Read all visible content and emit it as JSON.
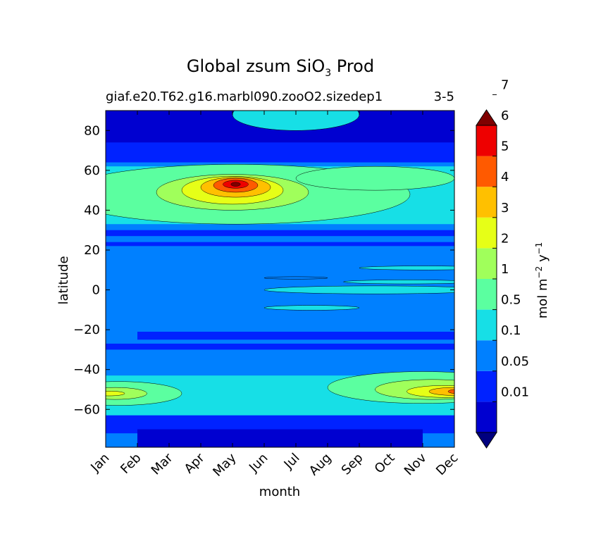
{
  "chart_data": {
    "type": "heatmap",
    "title": "Global zsum SiO",
    "title_subscript": "3",
    "title_suffix": " Prod",
    "subtitle_left": "giaf.e20.T62.g16.marbl090.zooO2.sizedep1",
    "subtitle_right": "3-5",
    "xlabel": "month",
    "ylabel": "latitude",
    "x_ticks": [
      "Jan",
      "Feb",
      "Mar",
      "Apr",
      "May",
      "Jun",
      "Jul",
      "Aug",
      "Sep",
      "Oct",
      "Nov",
      "Dec"
    ],
    "y_ticks": [
      80,
      60,
      40,
      20,
      0,
      -20,
      -40,
      -60
    ],
    "y_tick_labels": [
      "80",
      "60",
      "40",
      "20",
      "0",
      "−20",
      "−40",
      "−60"
    ],
    "ylim": [
      -79,
      90
    ],
    "colorbar": {
      "label": "mol m",
      "label_exp1": "−2",
      "label_mid": " y",
      "label_exp2": "−1",
      "levels": [
        0.01,
        0.05,
        0.1,
        0.5,
        1,
        2,
        3,
        4,
        5,
        6,
        7
      ],
      "level_labels": [
        "0.01",
        "0.05",
        "0.1",
        "0.5",
        "1",
        "2",
        "3",
        "4",
        "5",
        "6",
        "7"
      ],
      "colors": [
        "#00007f",
        "#0000d0",
        "#0022ff",
        "#0080ff",
        "#17dfe6",
        "#5bffa0",
        "#a0ff5b",
        "#e6ff17",
        "#ffc000",
        "#ff5a00",
        "#ee0000",
        "#7f0000"
      ],
      "extend": "both"
    },
    "features": [
      {
        "kind": "ellipse",
        "month": 5.1,
        "lat": 48,
        "half_months": 5.5,
        "half_lat": 15,
        "value": 1.4
      },
      {
        "kind": "ellipse",
        "month": 5.0,
        "lat": 49,
        "half_months": 2.4,
        "half_lat": 9,
        "value": 2.3
      },
      {
        "kind": "ellipse",
        "month": 5.0,
        "lat": 50,
        "half_months": 1.6,
        "half_lat": 7,
        "value": 3.3
      },
      {
        "kind": "ellipse",
        "month": 5.1,
        "lat": 51.5,
        "half_months": 1.1,
        "half_lat": 5,
        "value": 4.4
      },
      {
        "kind": "ellipse",
        "month": 5.1,
        "lat": 52.5,
        "half_months": 0.7,
        "half_lat": 3.5,
        "value": 5.4
      },
      {
        "kind": "ellipse",
        "month": 5.1,
        "lat": 53,
        "half_months": 0.4,
        "half_lat": 2,
        "value": 6.4
      },
      {
        "kind": "ellipse",
        "month": 5.1,
        "lat": 53,
        "half_months": 0.15,
        "half_lat": 1,
        "value": 7.4
      },
      {
        "kind": "ellipse",
        "month": 9.5,
        "lat": 56,
        "half_months": 2.5,
        "half_lat": 6,
        "value": 1.4
      },
      {
        "kind": "ellipse",
        "month": 1.4,
        "lat": -52,
        "half_months": 2.0,
        "half_lat": 6,
        "value": 1.3
      },
      {
        "kind": "ellipse",
        "month": 1.3,
        "lat": -52,
        "half_months": 1.0,
        "half_lat": 3,
        "value": 2.4
      },
      {
        "kind": "ellipse",
        "month": 1.1,
        "lat": -52,
        "half_months": 0.5,
        "half_lat": 1.2,
        "value": 3.4
      },
      {
        "kind": "ellipse",
        "month": 11.0,
        "lat": -49,
        "half_months": 3.0,
        "half_lat": 8,
        "value": 1.3
      },
      {
        "kind": "ellipse",
        "month": 11.3,
        "lat": -50,
        "half_months": 1.8,
        "half_lat": 5,
        "value": 2.4
      },
      {
        "kind": "ellipse",
        "month": 11.7,
        "lat": -51,
        "half_months": 1.2,
        "half_lat": 3,
        "value": 3.4
      },
      {
        "kind": "ellipse",
        "month": 12.0,
        "lat": -51,
        "half_months": 0.8,
        "half_lat": 2,
        "value": 4.4
      },
      {
        "kind": "ellipse",
        "month": 12.2,
        "lat": -51,
        "half_months": 0.4,
        "half_lat": 1.2,
        "value": 5.4
      },
      {
        "kind": "ellipse",
        "month": 7.0,
        "lat": 88,
        "half_months": 2.0,
        "half_lat": 8,
        "value": 0.7
      },
      {
        "kind": "ellipse",
        "month": 7.0,
        "lat": 6,
        "half_months": 1.0,
        "half_lat": 0.6,
        "value": 0.3
      },
      {
        "kind": "ellipse",
        "month": 9.5,
        "lat": 0,
        "half_months": 3.5,
        "half_lat": 2,
        "value": 0.7
      },
      {
        "kind": "ellipse",
        "month": 10.5,
        "lat": 4,
        "half_months": 2.0,
        "half_lat": 1,
        "value": 0.7
      },
      {
        "kind": "ellipse",
        "month": 7.5,
        "lat": -9,
        "half_months": 1.5,
        "half_lat": 1.2,
        "value": 0.7
      },
      {
        "kind": "ellipse",
        "month": 11.0,
        "lat": 11,
        "half_months": 2.0,
        "half_lat": 1,
        "value": 0.7
      }
    ]
  }
}
